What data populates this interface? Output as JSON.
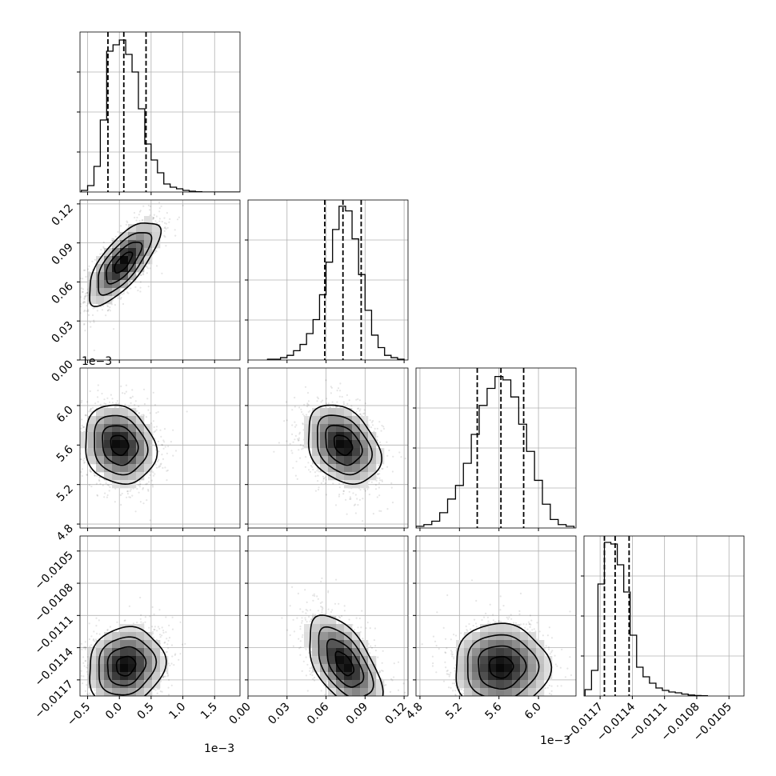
{
  "chart_data": {
    "type": "corner",
    "grid": true,
    "parameters": [
      {
        "range": [
          -0.62,
          1.9
        ],
        "ticks": [
          -0.5,
          0.0,
          0.5,
          1.0,
          1.5
        ],
        "tick_labels": [
          "−0.5",
          "0.0",
          "0.5",
          "1.0",
          "1.5"
        ],
        "offset_label": "1e−3",
        "quantiles": [
          -0.18,
          0.07,
          0.42
        ],
        "hist_edges": [
          -0.6,
          -0.5,
          -0.4,
          -0.3,
          -0.2,
          -0.1,
          0.0,
          0.1,
          0.2,
          0.3,
          0.4,
          0.5,
          0.6,
          0.7,
          0.8,
          0.9,
          1.0,
          1.1,
          1.2,
          1.3,
          1.4,
          1.5,
          1.6,
          1.7,
          1.8,
          1.9
        ],
        "hist_counts": [
          1,
          4,
          16,
          45,
          88,
          92,
          95,
          86,
          75,
          52,
          30,
          20,
          12,
          5,
          3,
          2,
          1,
          0.5,
          0.2,
          0,
          0,
          0,
          0,
          0,
          0
        ],
        "hist_max": 100
      },
      {
        "range": [
          0.0,
          0.123
        ],
        "ticks": [
          0.0,
          0.03,
          0.06,
          0.09,
          0.12
        ],
        "tick_labels": [
          "0.00",
          "0.03",
          "0.06",
          "0.09",
          "0.12"
        ],
        "offset_label": "",
        "quantiles": [
          0.059,
          0.073,
          0.087
        ],
        "hist_edges": [
          0.015,
          0.02,
          0.025,
          0.03,
          0.035,
          0.04,
          0.045,
          0.05,
          0.055,
          0.06,
          0.065,
          0.07,
          0.075,
          0.08,
          0.085,
          0.09,
          0.095,
          0.1,
          0.105,
          0.11,
          0.115,
          0.12
        ],
        "hist_counts": [
          0.5,
          0.5,
          1.5,
          3,
          6,
          10,
          17,
          26,
          42,
          63,
          84,
          99,
          96,
          78,
          55,
          32,
          16,
          8,
          3,
          1.5,
          0.5
        ],
        "hist_max": 103
      },
      {
        "range": [
          4.76,
          6.38
        ],
        "ticks": [
          4.8,
          5.2,
          5.6,
          6.0
        ],
        "tick_labels": [
          "4.8",
          "5.2",
          "5.6",
          "6.0"
        ],
        "offset_label": "1e−3",
        "quantiles": [
          5.38,
          5.62,
          5.85
        ],
        "hist_edges": [
          4.76,
          4.84,
          4.92,
          5.0,
          5.08,
          5.16,
          5.24,
          5.32,
          5.4,
          5.48,
          5.56,
          5.64,
          5.72,
          5.8,
          5.88,
          5.96,
          6.04,
          6.12,
          6.2,
          6.28,
          6.36
        ],
        "hist_counts": [
          1,
          2,
          4,
          9,
          17,
          25,
          38,
          55,
          72,
          82,
          89,
          87,
          77,
          61,
          45,
          28,
          14,
          5,
          2,
          1
        ],
        "hist_max": 94
      },
      {
        "range": [
          -0.01185,
          -0.01036
        ],
        "ticks": [
          -0.0117,
          -0.0114,
          -0.0111,
          -0.0108,
          -0.0105
        ],
        "tick_labels": [
          "−0.0117",
          "−0.0114",
          "−0.0111",
          "−0.0108",
          "−0.0105"
        ],
        "offset_label": "",
        "quantiles": [
          -0.01166,
          -0.01156,
          -0.01143
        ],
        "hist_edges": [
          -0.01184,
          -0.01178,
          -0.01172,
          -0.01166,
          -0.0116,
          -0.01154,
          -0.01148,
          -0.01142,
          -0.01136,
          -0.0113,
          -0.01124,
          -0.01118,
          -0.01112,
          -0.01106,
          -0.011,
          -0.01094,
          -0.01088,
          -0.01082,
          -0.01076,
          -0.0107
        ],
        "hist_counts": [
          4,
          16,
          70,
          96,
          95,
          82,
          65,
          38,
          18,
          12,
          8,
          5,
          3.5,
          2.5,
          2,
          1.2,
          0.6,
          0.3,
          0.2
        ],
        "hist_max": 100
      }
    ],
    "pairs": [
      {
        "x": 0,
        "y": 1,
        "mean": [
          0.06,
          0.075
        ],
        "sd": [
          0.28,
          0.016
        ],
        "rho": 0.72
      },
      {
        "x": 0,
        "y": 2,
        "mean": [
          0.0,
          5.6
        ],
        "sd": [
          0.28,
          0.2
        ],
        "rho": -0.15
      },
      {
        "x": 1,
        "y": 2,
        "mean": [
          0.073,
          5.6
        ],
        "sd": [
          0.014,
          0.2
        ],
        "rho": -0.3
      },
      {
        "x": 0,
        "y": 3,
        "mean": [
          0.1,
          -0.01157
        ],
        "sd": [
          0.3,
          0.00018
        ],
        "rho": 0.12
      },
      {
        "x": 1,
        "y": 3,
        "mean": [
          0.074,
          -0.01155
        ],
        "sd": [
          0.014,
          0.00022
        ],
        "rho": -0.55
      },
      {
        "x": 2,
        "y": 3,
        "mean": [
          5.62,
          -0.01158
        ],
        "sd": [
          0.24,
          0.0002
        ],
        "rho": 0.0
      }
    ]
  }
}
